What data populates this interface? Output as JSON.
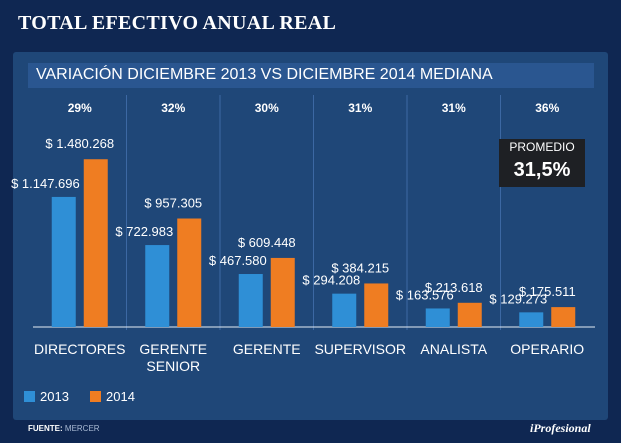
{
  "title": "TOTAL EFECTIVO ANUAL REAL",
  "chart_data": {
    "type": "bar",
    "title": "TOTAL EFECTIVO ANUAL REAL",
    "subtitle": "VARIACIÓN DICIEMBRE 2013 VS DICIEMBRE 2014 MEDIANA",
    "categories": [
      [
        "DIRECTORES"
      ],
      [
        "GERENTE",
        "SENIOR"
      ],
      [
        "GERENTE"
      ],
      [
        "SUPERVISOR"
      ],
      [
        "ANALISTA"
      ],
      [
        "OPERARIO"
      ]
    ],
    "variation_labels": [
      "29%",
      "32%",
      "30%",
      "31%",
      "31%",
      "36%"
    ],
    "series": [
      {
        "name": "2013",
        "color": "#2f8fd6",
        "values": [
          1147696,
          722983,
          467580,
          294208,
          163576,
          129273
        ],
        "labels": [
          "$ 1.147.696",
          "$ 722.983",
          "$ 467.580",
          "$ 294.208",
          "$ 163.576",
          "$ 129.273"
        ]
      },
      {
        "name": "2014",
        "color": "#ef7d22",
        "values": [
          1480268,
          957305,
          609448,
          384215,
          213618,
          175511
        ],
        "labels": [
          "$ 1.480.268",
          "$ 957.305",
          "$ 609.448",
          "$ 384.215",
          "$ 213.618",
          "$ 175.511"
        ]
      }
    ],
    "ylim": [
      0,
      1500000
    ],
    "legend_position": "bottom-left",
    "grid": false
  },
  "promedio": {
    "label": "PROMEDIO",
    "value": "31,5%"
  },
  "source": {
    "label": "FUENTE:",
    "value": "MERCER"
  },
  "brand": "iProfesional",
  "colors": {
    "background": "#0f2752",
    "panel": "#1f4778",
    "subtitle_bar": "#2a5690",
    "divider": "#3c68a3"
  }
}
